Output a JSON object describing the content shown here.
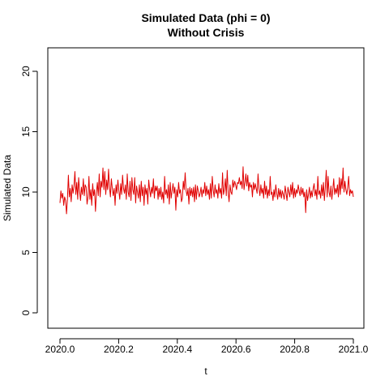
{
  "chart_data": {
    "type": "line",
    "title": "Simulated Data (phi = 0)",
    "subtitle": "Without Crisis",
    "xlabel": "t",
    "ylabel": "Simulated Data",
    "xlim": [
      2020.0,
      2021.0
    ],
    "ylim": [
      0,
      21
    ],
    "xticks": [
      "2020.0",
      "2020.2",
      "2020.4",
      "2020.6",
      "2020.8",
      "2021.0"
    ],
    "yticks": [
      "0",
      "5",
      "10",
      "15",
      "20"
    ],
    "grid": false,
    "series": [
      {
        "color": "#e00000",
        "x_start": 2020.0,
        "x_end": 2021.0,
        "values": [
          9.1,
          10.1,
          9.5,
          9.9,
          8.9,
          9.6,
          9.3,
          8.2,
          9.4,
          11.4,
          9.6,
          10.3,
          9.2,
          10.6,
          9.9,
          10.5,
          11.7,
          9.8,
          10.8,
          9.4,
          11.2,
          10.1,
          9.3,
          10.4,
          9.8,
          11.1,
          9.7,
          10.6,
          10.4,
          9.0,
          9.6,
          11.3,
          9.4,
          10.2,
          8.9,
          10.7,
          9.7,
          10.2,
          8.4,
          9.9,
          10.8,
          9.7,
          11.5,
          9.6,
          10.9,
          10.4,
          12.0,
          10.2,
          11.7,
          9.8,
          11.0,
          10.2,
          11.9,
          10.4,
          9.6,
          11.1,
          10.3,
          9.7,
          10.3,
          8.9,
          10.6,
          9.9,
          11.0,
          10.1,
          9.4,
          10.7,
          9.8,
          11.4,
          10.3,
          9.9,
          10.6,
          9.4,
          11.5,
          10.0,
          9.6,
          10.9,
          9.3,
          11.2,
          10.2,
          9.8,
          11.2,
          9.1,
          10.5,
          10.0,
          9.5,
          10.6,
          9.2,
          10.9,
          9.7,
          10.4,
          8.9,
          10.6,
          9.8,
          10.3,
          9.0,
          11.0,
          10.2,
          9.6,
          10.4,
          9.9,
          11.1,
          9.5,
          10.5,
          10.1,
          10.5,
          9.4,
          10.3,
          9.6,
          10.4,
          9.4,
          10.0,
          9.1,
          11.3,
          9.8,
          10.2,
          9.5,
          10.6,
          9.0,
          10.8,
          9.5,
          10.1,
          10.7,
          9.9,
          10.4,
          8.5,
          10.2,
          9.6,
          10.8,
          9.9,
          10.2,
          9.2,
          9.5,
          10.9,
          10.2,
          11.6,
          10.1,
          9.7,
          10.3,
          9.0,
          10.4,
          9.7,
          10.3,
          9.6,
          10.4,
          9.2,
          10.6,
          9.4,
          10.5,
          10.1,
          9.6,
          9.9,
          10.4,
          9.6,
          10.2,
          9.9,
          10.8,
          9.7,
          10.5,
          9.8,
          10.2,
          9.4,
          10.7,
          9.5,
          11.3,
          10.2,
          9.6,
          10.6,
          9.9,
          10.2,
          9.5,
          10.7,
          9.9,
          10.3,
          9.5,
          11.6,
          9.8,
          10.2,
          11.1,
          9.7,
          11.8,
          10.0,
          9.2,
          10.6,
          10.0,
          9.8,
          11.0,
          10.4,
          10.9,
          10.6,
          10.2,
          10.8,
          10.7,
          11.2,
          10.6,
          10.9,
          10.3,
          12.1,
          10.2,
          10.8,
          11.5,
          10.5,
          11.4,
          10.1,
          10.8,
          10.4,
          10.6,
          9.6,
          10.8,
          10.2,
          10.7,
          10.3,
          9.9,
          11.5,
          10.3,
          9.7,
          10.6,
          9.9,
          10.3,
          9.5,
          10.9,
          9.8,
          10.5,
          9.5,
          10.2,
          9.7,
          11.3,
          9.8,
          10.0,
          9.3,
          10.2,
          9.6,
          10.6,
          9.9,
          9.4,
          10.3,
          9.6,
          10.2,
          9.5,
          10.1,
          9.8,
          9.4,
          10.5,
          9.9,
          9.3,
          10.4,
          10.0,
          9.6,
          10.6,
          9.8,
          10.8,
          9.5,
          10.3,
          9.6,
          10.2,
          9.9,
          10.6,
          10.1,
          9.7,
          10.4,
          9.8,
          10.3,
          9.6,
          10.0,
          8.3,
          10.2,
          9.3,
          9.8,
          10.4,
          9.5,
          10.1,
          9.6,
          10.3,
          10.7,
          9.7,
          10.2,
          9.4,
          11.3,
          9.8,
          10.1,
          9.5,
          10.6,
          9.7,
          10.8,
          9.3,
          10.4,
          11.8,
          9.6,
          11.3,
          10.0,
          9.6,
          10.5,
          9.4,
          10.2,
          11.1,
          9.8,
          10.3,
          9.9,
          10.6,
          9.6,
          11.2,
          9.8,
          11.1,
          10.3,
          12.0,
          10.0,
          10.9,
          10.2,
          9.8,
          10.4,
          11.3,
          9.7,
          10.2,
          9.9,
          10.1,
          9.6
        ]
      }
    ]
  }
}
